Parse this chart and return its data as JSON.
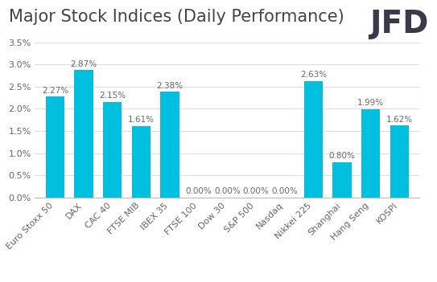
{
  "title": "Major Stock Indices (Daily Performance)",
  "categories": [
    "Euro Stoxx 50",
    "DAX",
    "CAC 40",
    "FTSE MIB",
    "IBEX 35",
    "FTSE 100",
    "Dow 30",
    "S&P 500",
    "Nasdaq",
    "Nikkei 225",
    "Shanghai",
    "Hang Seng",
    "KOSPI"
  ],
  "values": [
    2.27,
    2.87,
    2.15,
    1.61,
    2.38,
    0.0,
    0.0,
    0.0,
    0.0,
    2.63,
    0.8,
    1.99,
    1.62
  ],
  "bar_color": "#00BFDF",
  "ylim": [
    0,
    3.5
  ],
  "yticks": [
    0.0,
    0.5,
    1.0,
    1.5,
    2.0,
    2.5,
    3.0,
    3.5
  ],
  "title_fontsize": 15,
  "label_fontsize": 7.5,
  "tick_fontsize": 8,
  "background_color": "#ffffff",
  "grid_color": "#dddddd",
  "jfd_text": "JFD",
  "jfd_fontsize": 28,
  "jfd_color": "#3a3a4a",
  "text_color": "#666666"
}
